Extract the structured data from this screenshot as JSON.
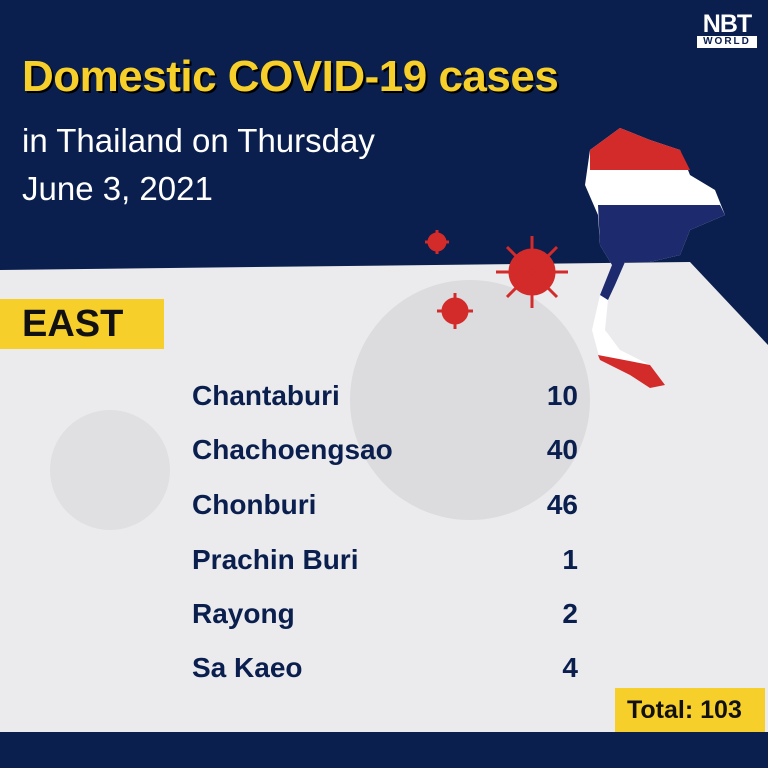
{
  "header": {
    "title": "Domestic COVID-19 cases",
    "subtitle_line1": "in Thailand on Thursday",
    "subtitle_line2": "June 3, 2021"
  },
  "logo": {
    "text": "NBT",
    "subtext": "WORLD"
  },
  "region": {
    "label": "EAST"
  },
  "provinces": [
    {
      "name": "Chantaburi",
      "cases": "10"
    },
    {
      "name": "Chachoengsao",
      "cases": "40"
    },
    {
      "name": "Chonburi",
      "cases": "46"
    },
    {
      "name": "Prachin Buri",
      "cases": "1"
    },
    {
      "name": "Rayong",
      "cases": "2"
    },
    {
      "name": "Sa Kaeo",
      "cases": "4"
    }
  ],
  "total": {
    "label": "Total: 103"
  },
  "colors": {
    "navy": "#0a1f4e",
    "yellow": "#f7cf2a",
    "red": "#d32a2a",
    "panel": "#ebebed"
  },
  "icons": [
    "thailand-flag-map-icon",
    "virus-icon"
  ]
}
